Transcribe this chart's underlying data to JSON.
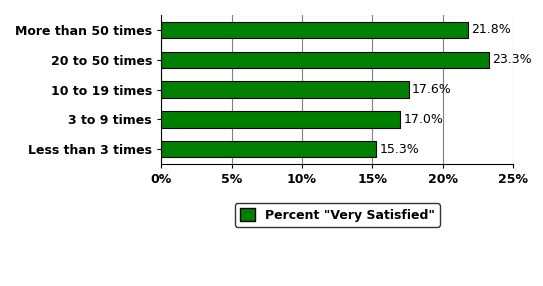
{
  "categories": [
    "Less than 3 times",
    "3 to 9 times",
    "10 to 19 times",
    "20 to 50 times",
    "More than 50 times"
  ],
  "values": [
    15.3,
    17.0,
    17.6,
    23.3,
    21.8
  ],
  "bar_color": "#008000",
  "bar_edge_color": "#000000",
  "value_labels": [
    "15.3%",
    "17.0%",
    "17.6%",
    "23.3%",
    "21.8%"
  ],
  "xlim": [
    0,
    25
  ],
  "xticks": [
    0,
    5,
    10,
    15,
    20,
    25
  ],
  "xtick_labels": [
    "0%",
    "5%",
    "10%",
    "15%",
    "20%",
    "25%"
  ],
  "legend_label": "Percent \"Very Satisfied\"",
  "background_color": "#ffffff",
  "grid_color": "#808080",
  "label_fontsize": 9,
  "tick_fontsize": 9,
  "value_fontsize": 9
}
